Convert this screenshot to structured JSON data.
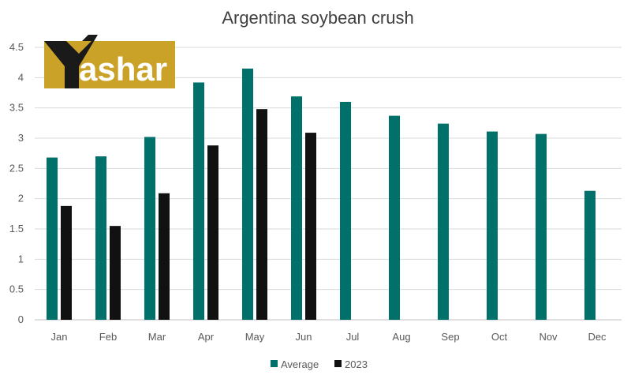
{
  "chart_data": {
    "type": "bar",
    "title": "Argentina soybean crush",
    "categories": [
      "Jan",
      "Feb",
      "Mar",
      "Apr",
      "May",
      "Jun",
      "Jul",
      "Aug",
      "Sep",
      "Oct",
      "Nov",
      "Dec"
    ],
    "series": [
      {
        "name": "Average",
        "color": "#00706b",
        "values": [
          2.68,
          2.7,
          3.02,
          3.92,
          4.15,
          3.69,
          3.6,
          3.37,
          3.24,
          3.11,
          3.07,
          2.13
        ]
      },
      {
        "name": "2023",
        "color": "#111111",
        "values": [
          1.88,
          1.55,
          2.09,
          2.88,
          3.48,
          3.09,
          null,
          null,
          null,
          null,
          null,
          null
        ]
      }
    ],
    "y_ticks": [
      "0",
      "0.5",
      "1",
      "1.5",
      "2",
      "2.5",
      "3",
      "3.5",
      "4",
      "4.5"
    ],
    "ylim": [
      0,
      4.5
    ],
    "grid": true,
    "legend_position": "bottom"
  },
  "watermark": {
    "logo_text": "Yashar",
    "colors": {
      "gold": "#c9a227",
      "dark": "#1a1a1a"
    }
  }
}
